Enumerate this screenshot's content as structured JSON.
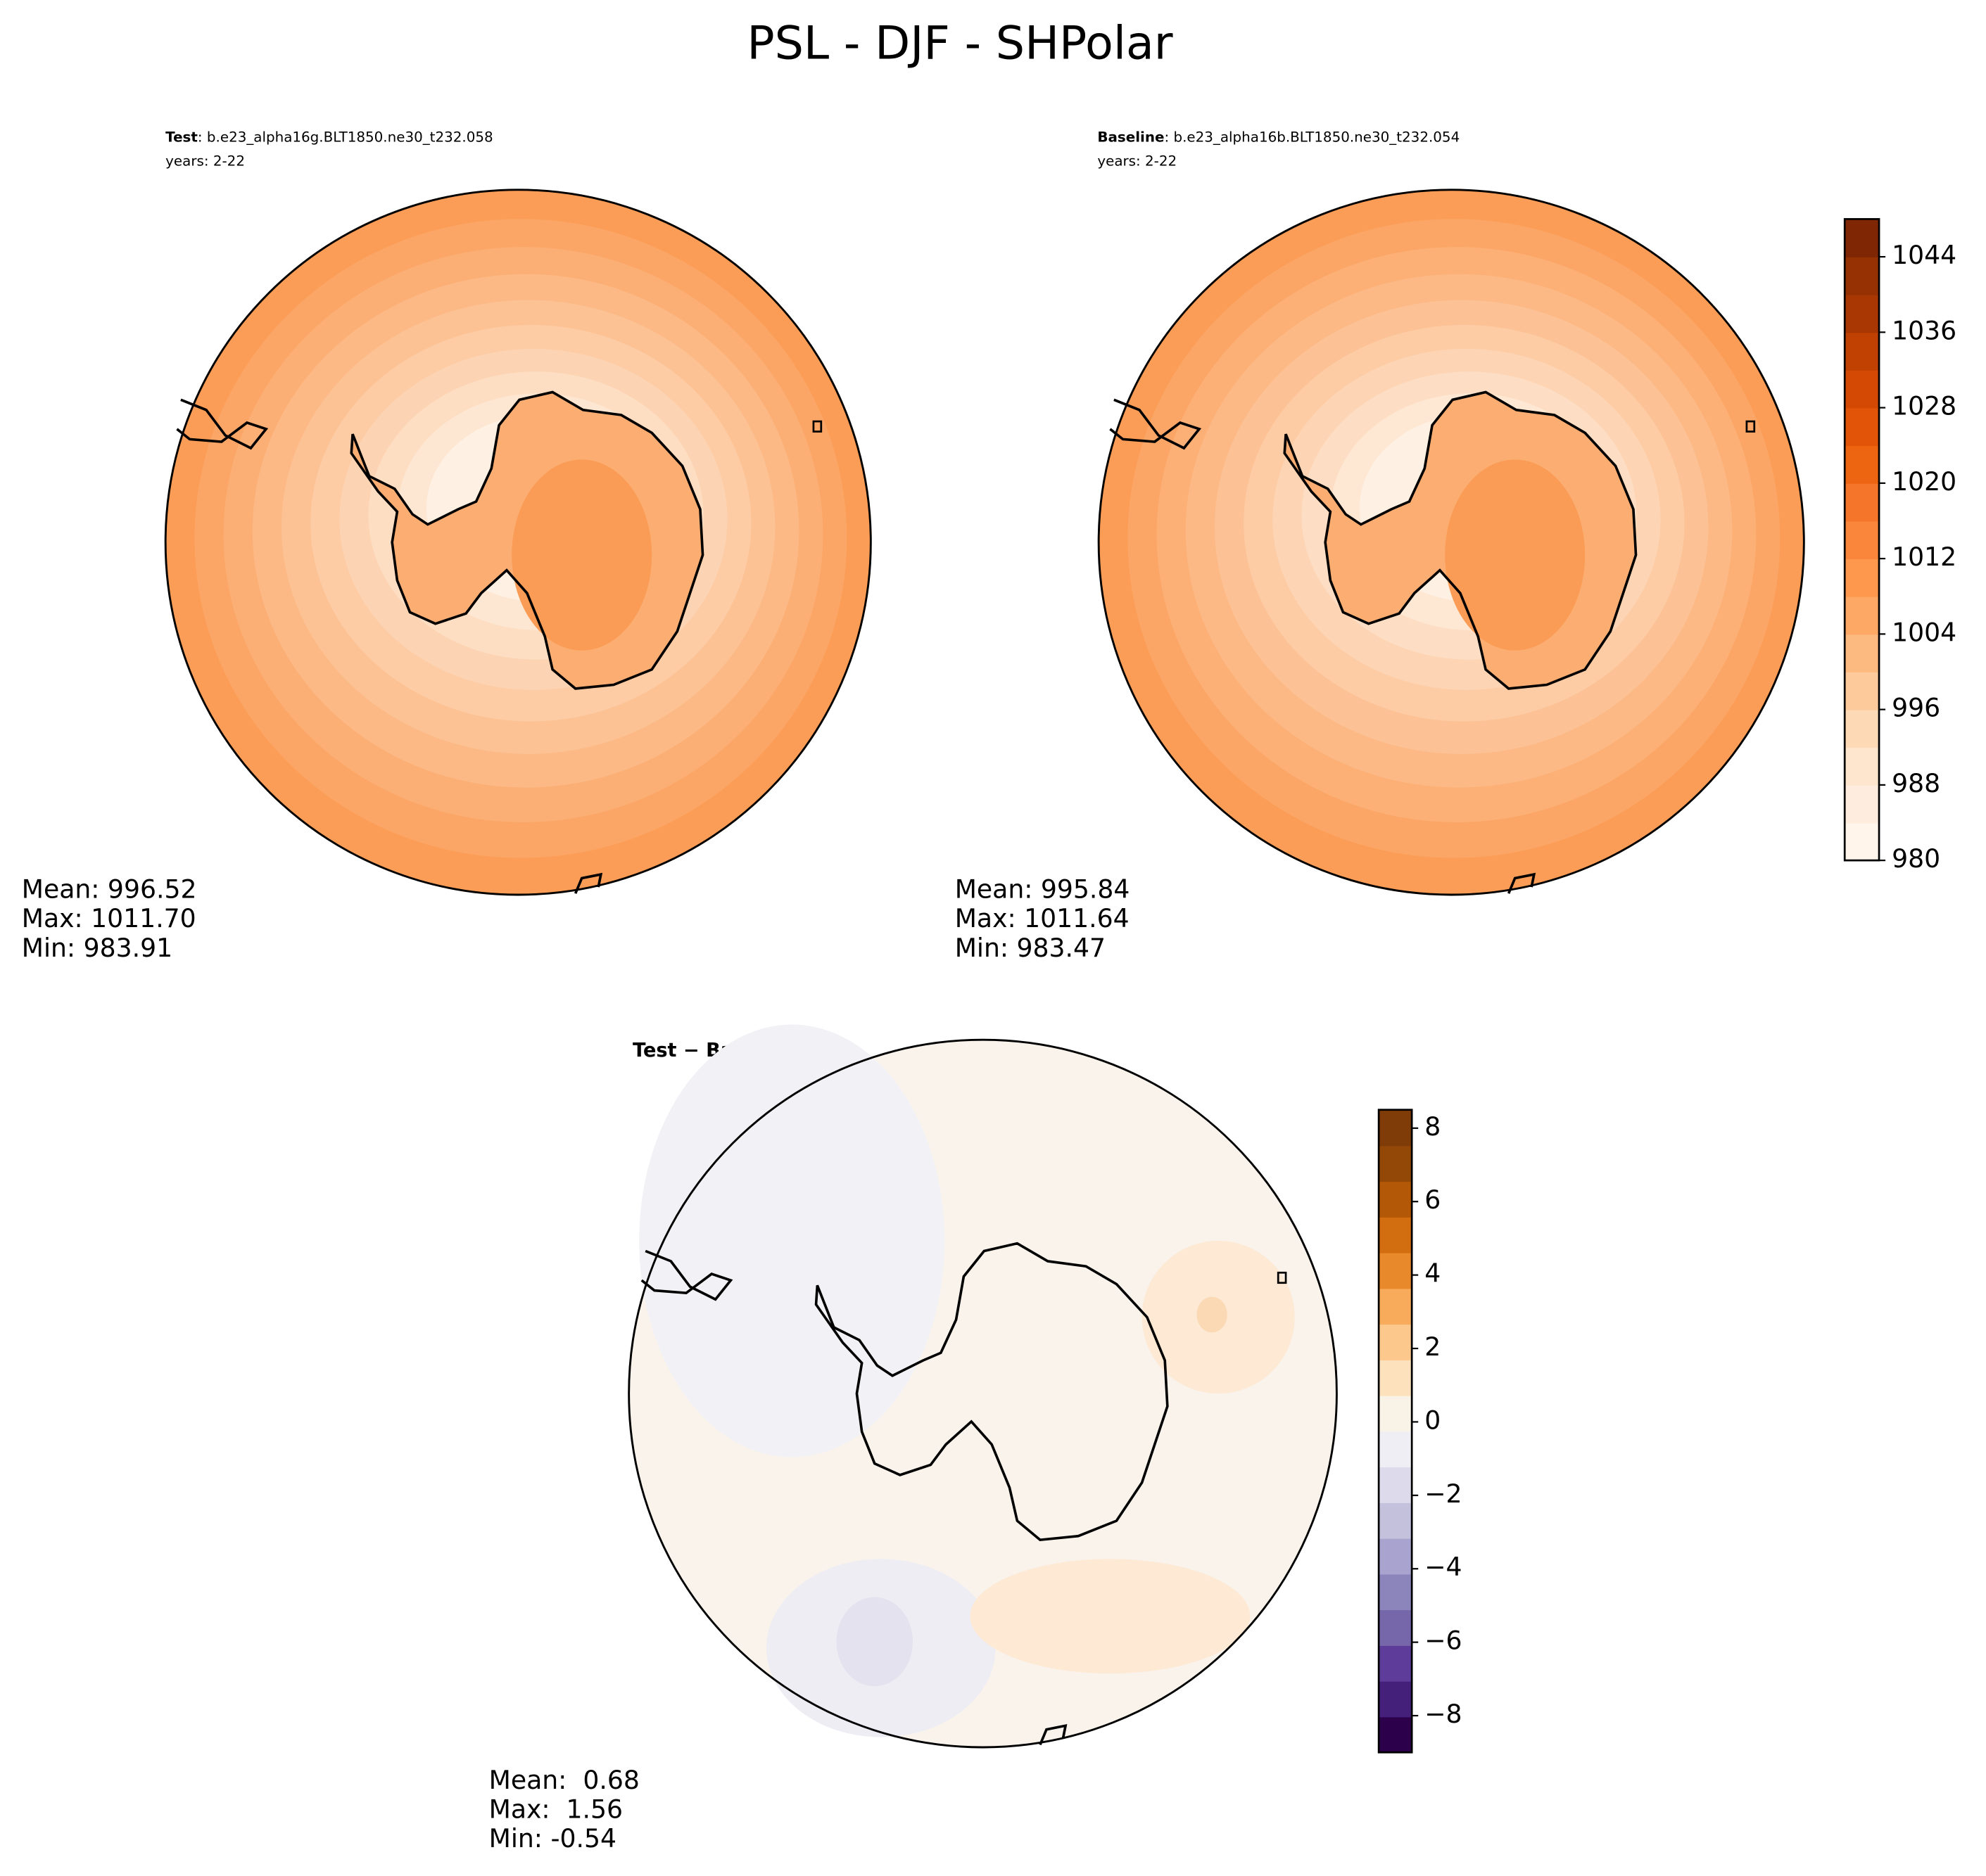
{
  "title": "PSL - DJF - SHPolar",
  "chart_data": [
    {
      "type": "map",
      "label": "Test",
      "title": ": b.e23_alpha16g.BLT1850.ne30_t232.058",
      "subtitle": "years: 2-22",
      "stats": [
        "Mean: 996.52",
        "Max: 1011.70",
        "Min: 983.91"
      ]
    },
    {
      "type": "map",
      "label": "Baseline",
      "title": ": b.e23_alpha16b.BLT1850.ne30_t232.054",
      "subtitle": "years: 2-22",
      "stats": [
        "Mean: 995.84",
        "Max: 1011.64",
        "Min: 983.47"
      ]
    },
    {
      "type": "colorbar",
      "ylim": [
        980,
        1048
      ],
      "yticks": [
        980,
        988,
        996,
        1004,
        1012,
        1020,
        1028,
        1036,
        1044
      ],
      "colors": [
        "#fff5eb",
        "#feedde",
        "#fee6ce",
        "#fdd9b5",
        "#fdcb9b",
        "#fdba80",
        "#fda864",
        "#fd984c",
        "#f9863a",
        "#f5752a",
        "#ee6511",
        "#e25508",
        "#d44a04",
        "#c04102",
        "#a83703",
        "#963103",
        "#7f2704"
      ]
    },
    {
      "type": "map",
      "title": "Test − Baseline",
      "stats": [
        "Mean:  0.68",
        "Max:  1.56",
        "Min: -0.54"
      ]
    },
    {
      "type": "colorbar",
      "ylim": [
        -9,
        8.5
      ],
      "yticks": [
        {
          "value": -8,
          "label": "−8"
        },
        {
          "value": -6,
          "label": "−6"
        },
        {
          "value": -4,
          "label": "−4"
        },
        {
          "value": -2,
          "label": "−2"
        },
        0,
        2,
        4,
        6,
        8
      ],
      "colors": [
        "#2d004b",
        "#45207a",
        "#5e3c99",
        "#7666aa",
        "#8c85bb",
        "#a9a3cf",
        "#c4c1dd",
        "#dcdaeb",
        "#efeef5",
        "#f9f2e6",
        "#fde1bc",
        "#fdc88c",
        "#f8ab5a",
        "#e88a2b",
        "#d26e10",
        "#b35806",
        "#934807",
        "#7f3b08"
      ]
    }
  ]
}
